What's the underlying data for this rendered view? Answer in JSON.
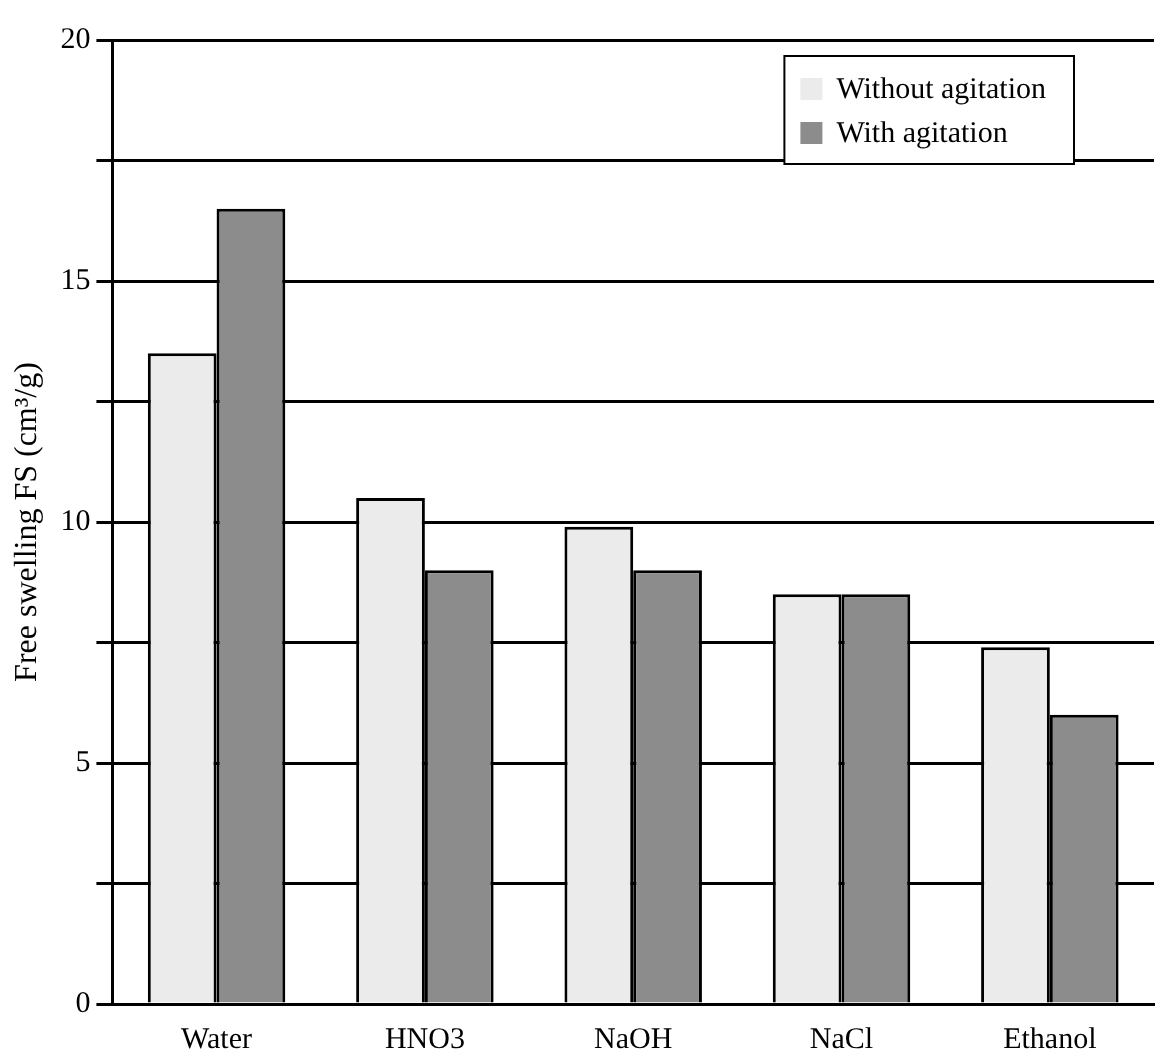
{
  "chart_data": {
    "type": "bar",
    "ylabel": "Free swelling FS (cm³/g)",
    "categories": [
      "Water",
      "HNO3",
      "NaOH",
      "NaCl",
      "Ethanol"
    ],
    "series": [
      {
        "name": "Without agitation",
        "color": "#ebebeb",
        "values": [
          13.5,
          10.5,
          9.9,
          8.5,
          7.4
        ]
      },
      {
        "name": "With agitation",
        "color": "#8c8c8c",
        "values": [
          16.5,
          9,
          9,
          8.5,
          6
        ]
      }
    ],
    "ylim": [
      0,
      20
    ],
    "yticks": [
      0,
      {
        "value": 2.5,
        "label": null
      },
      5,
      {
        "value": 7.5,
        "label": null
      },
      10,
      {
        "value": 12.5,
        "label": null
      },
      15,
      {
        "value": 17.5,
        "label": null
      },
      20
    ],
    "grid": "y",
    "legend": "top right"
  }
}
